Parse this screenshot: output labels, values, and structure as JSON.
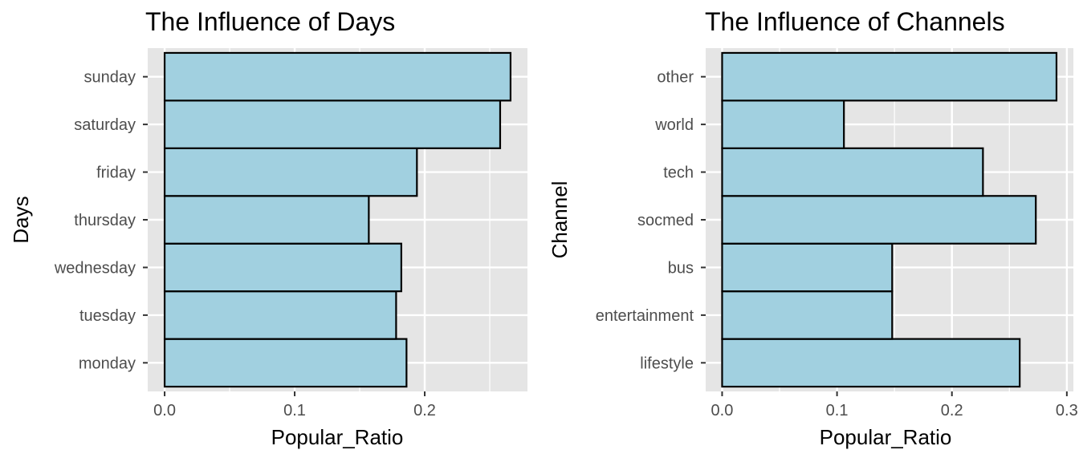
{
  "chart_data": [
    {
      "type": "bar",
      "orientation": "horizontal",
      "title": "The Influence of Days",
      "xlabel": "Popular_Ratio",
      "ylabel": "Days",
      "categories": [
        "monday",
        "tuesday",
        "wednesday",
        "thursday",
        "friday",
        "saturday",
        "sunday"
      ],
      "values": [
        0.186,
        0.178,
        0.182,
        0.157,
        0.194,
        0.258,
        0.266
      ],
      "xlim": [
        -0.013,
        0.279
      ],
      "xticks": [
        0.0,
        0.1,
        0.2
      ],
      "xtick_labels": [
        "0.0",
        "0.1",
        "0.2"
      ],
      "grid": true,
      "fill_color": "#a1d0e0",
      "edge_color": "#000000",
      "panel_color": "#e5e5e5",
      "grid_color": "#ffffff"
    },
    {
      "type": "bar",
      "orientation": "horizontal",
      "title": "The Influence of Channels",
      "xlabel": "Popular_Ratio",
      "ylabel": "Channel",
      "categories": [
        "lifestyle",
        "entertainment",
        "bus",
        "socmed",
        "tech",
        "world",
        "other"
      ],
      "values": [
        0.259,
        0.148,
        0.148,
        0.273,
        0.227,
        0.106,
        0.291
      ],
      "xlim": [
        -0.0143,
        0.3057
      ],
      "xticks": [
        0.0,
        0.1,
        0.2,
        0.3
      ],
      "xtick_labels": [
        "0.0",
        "0.1",
        "0.2",
        "0.3"
      ],
      "grid": true,
      "fill_color": "#a1d0e0",
      "edge_color": "#000000",
      "panel_color": "#e5e5e5",
      "grid_color": "#ffffff"
    }
  ]
}
